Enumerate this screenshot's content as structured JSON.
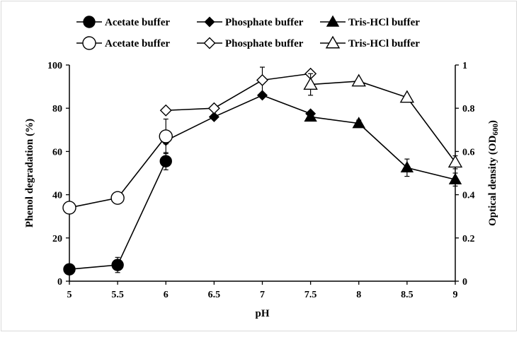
{
  "chart_data": {
    "type": "line",
    "xlabel": "pH",
    "ylabel": "Phenol degradation (%)",
    "y2label": "Optical density (OD",
    "y2label_sub": "600",
    "y2label_close": ")",
    "xlim": [
      5,
      9
    ],
    "ylim": [
      0,
      100
    ],
    "y2lim": [
      0,
      1
    ],
    "x_ticks": [
      "5",
      "5.5",
      "6",
      "6.5",
      "7",
      "7.5",
      "8",
      "8.5",
      "9"
    ],
    "y_ticks": [
      "0",
      "20",
      "40",
      "60",
      "80",
      "100"
    ],
    "y2_ticks": [
      "0",
      "0.2",
      "0.4",
      "0.6",
      "0.8",
      "1"
    ],
    "grid": false,
    "legend_position": "top",
    "series": [
      {
        "name": "Acetate buffer",
        "axis": "left",
        "marker": "circle",
        "filled": true,
        "x": [
          5,
          5.5,
          6
        ],
        "y": [
          5.5,
          7.5,
          55.5
        ],
        "err": [
          1,
          3.5,
          4
        ]
      },
      {
        "name": "Phosphate buffer",
        "axis": "left",
        "marker": "diamond",
        "filled": true,
        "x": [
          6,
          6.5,
          7,
          7.5
        ],
        "y": [
          65,
          76,
          86,
          77.5
        ],
        "err": [
          1.5,
          1,
          1,
          1
        ]
      },
      {
        "name": "Tris-HCl buffer",
        "axis": "left",
        "marker": "triangle",
        "filled": true,
        "x": [
          7.5,
          8,
          8.5,
          9
        ],
        "y": [
          76,
          73,
          52.5,
          47
        ],
        "err": [
          1.5,
          1.5,
          4,
          3
        ]
      },
      {
        "name": "Acetate buffer",
        "axis": "right",
        "marker": "circle",
        "filled": false,
        "x": [
          5,
          5.5,
          6
        ],
        "y": [
          0.34,
          0.385,
          0.67
        ],
        "err": [
          0.01,
          0.02,
          0.08
        ]
      },
      {
        "name": "Phosphate buffer",
        "axis": "right",
        "marker": "diamond",
        "filled": false,
        "x": [
          6,
          6.5,
          7,
          7.5
        ],
        "y": [
          0.79,
          0.8,
          0.93,
          0.96
        ],
        "err": [
          0.01,
          0.01,
          0.06,
          0.01
        ]
      },
      {
        "name": "Tris-HCl buffer",
        "axis": "right",
        "marker": "triangle",
        "filled": false,
        "x": [
          7.5,
          8,
          8.5,
          9
        ],
        "y": [
          0.91,
          0.925,
          0.85,
          0.55
        ],
        "err": [
          0.05,
          0.01,
          0.01,
          0.03
        ]
      }
    ]
  }
}
